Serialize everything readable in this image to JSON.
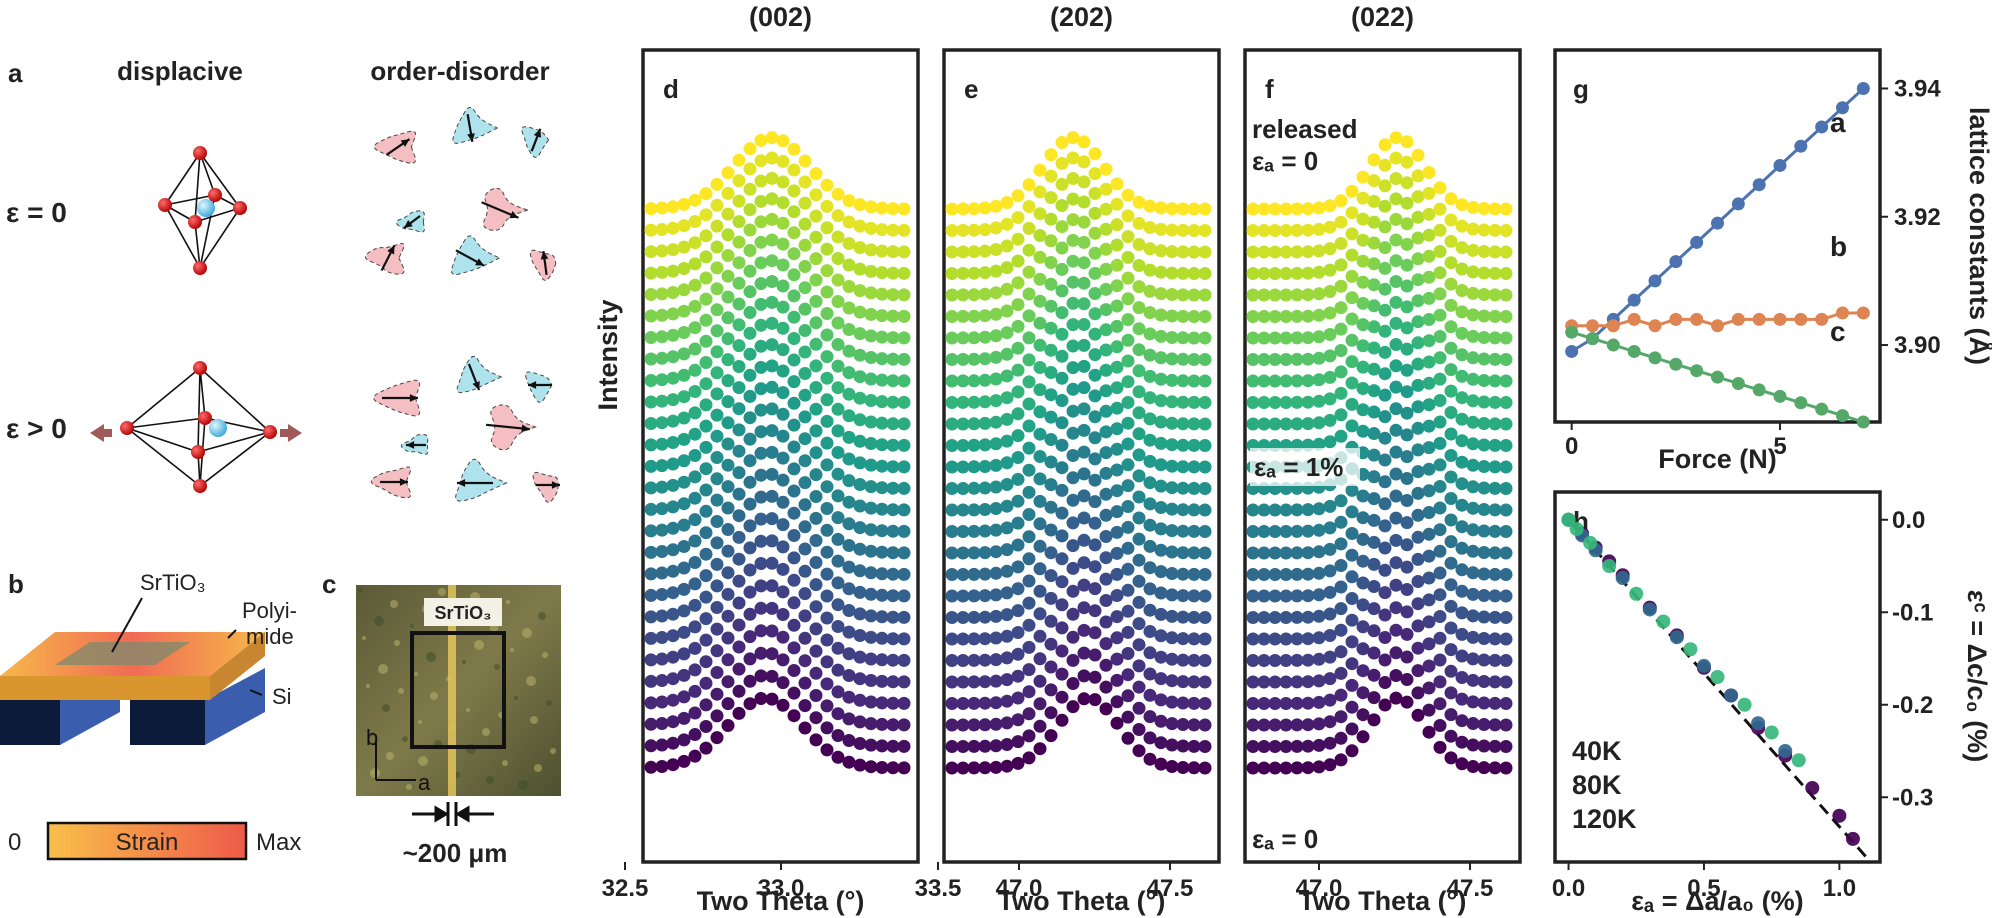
{
  "panel_a": {
    "label": "a",
    "col_displacive": "displacive",
    "col_order_disorder": "order-disorder",
    "row_eps0": "ε = 0",
    "row_epsg0": "ε > 0"
  },
  "panel_b": {
    "label": "b",
    "srtio3": "SrTiO₃",
    "polyimide_1": "Polyi-",
    "polyimide_2": "mide",
    "si": "Si",
    "strain_min": "0",
    "strain_label": "Strain",
    "strain_max": "Max"
  },
  "panel_c": {
    "label": "c",
    "srtio3": "SrTiO₃",
    "axis_b": "b",
    "axis_a": "a",
    "scale": "~200 μm"
  },
  "colors": {
    "viridis": [
      "#440154",
      "#482878",
      "#3e4989",
      "#31688e",
      "#26828e",
      "#1f9e89",
      "#35b779",
      "#6ece58",
      "#b5de2b",
      "#fde725"
    ],
    "a_series": "#4c72b0",
    "b_series": "#dd8452",
    "c_series": "#55a868",
    "k40": "#440154",
    "k80": "#31688e",
    "k120": "#35b779"
  },
  "chart_data": [
    {
      "type": "line",
      "panel": "d",
      "title": "(002)",
      "xlabel": "Two Theta (°)",
      "ylabel": "Intensity",
      "x_ticks": [
        "32.5",
        "33.0",
        "33.5"
      ],
      "xlim": [
        32.5,
        33.5
      ],
      "peak_center": 32.95,
      "peak_width": 0.12,
      "n_curves": 27,
      "series_note": "27 stacked diffraction curves, bottom (ε_a = 0) purple to top (released) yellow"
    },
    {
      "type": "line",
      "panel": "e",
      "title": "(202)",
      "xlabel": "Two Theta (°)",
      "x_ticks": [
        "47.0",
        "47.5"
      ],
      "xlim": [
        46.75,
        47.75
      ],
      "peak_center_bottom": 47.22,
      "peak_center_top": 47.18,
      "peak_width": 0.1,
      "n_curves": 27
    },
    {
      "type": "line",
      "panel": "f",
      "title": "(022)",
      "xlabel": "Two Theta (°)",
      "x_ticks": [
        "47.0",
        "47.5"
      ],
      "xlim": [
        46.75,
        47.75
      ],
      "peak_center": 47.26,
      "peak_width": 0.09,
      "n_curves": 27,
      "annotations": [
        "released",
        "εₐ = 0",
        "εₐ = 1%",
        "εₐ = 0"
      ]
    },
    {
      "type": "scatter",
      "panel": "g",
      "xlabel": "Force (N)",
      "ylabel": "lattice constants (Å)",
      "x_ticks": [
        "0",
        "5"
      ],
      "y_ticks": [
        "3.90",
        "3.92",
        "3.94"
      ],
      "xlim": [
        -0.4,
        7.4
      ],
      "ylim": [
        3.888,
        3.946
      ],
      "series": [
        {
          "name": "a",
          "x": [
            0,
            0.5,
            1,
            1.5,
            2,
            2.5,
            3,
            3.5,
            4,
            4.5,
            5,
            5.5,
            6,
            6.5,
            7
          ],
          "y": [
            3.899,
            3.901,
            3.904,
            3.907,
            3.91,
            3.913,
            3.916,
            3.919,
            3.922,
            3.925,
            3.928,
            3.931,
            3.934,
            3.937,
            3.94
          ]
        },
        {
          "name": "b",
          "x": [
            0,
            0.5,
            1,
            1.5,
            2,
            2.5,
            3,
            3.5,
            4,
            4.5,
            5,
            5.5,
            6,
            6.5,
            7
          ],
          "y": [
            3.903,
            3.903,
            3.903,
            3.904,
            3.903,
            3.904,
            3.904,
            3.903,
            3.904,
            3.904,
            3.904,
            3.904,
            3.904,
            3.905,
            3.905
          ]
        },
        {
          "name": "c",
          "x": [
            0,
            0.5,
            1,
            1.5,
            2,
            2.5,
            3,
            3.5,
            4,
            4.5,
            5,
            5.5,
            6,
            6.5,
            7
          ],
          "y": [
            3.902,
            3.901,
            3.9,
            3.899,
            3.898,
            3.897,
            3.896,
            3.895,
            3.894,
            3.893,
            3.892,
            3.891,
            3.89,
            3.889,
            3.888
          ]
        }
      ]
    },
    {
      "type": "scatter",
      "panel": "h",
      "xlabel": "εₐ = Δa/a₀ (%)",
      "ylabel": "εᶜ = Δc/c₀ (%)",
      "x_ticks": [
        "0.0",
        "0.5",
        "1.0"
      ],
      "y_ticks": [
        "0.0",
        "-0.1",
        "-0.2",
        "-0.3"
      ],
      "xlim": [
        -0.05,
        1.15
      ],
      "ylim": [
        -0.37,
        0.03
      ],
      "series": [
        {
          "name": "40K",
          "x": [
            0.0,
            0.05,
            0.1,
            0.15,
            0.2,
            0.3,
            0.4,
            0.5,
            0.6,
            0.7,
            0.8,
            0.9,
            1.0,
            1.05
          ],
          "y": [
            0.0,
            -0.015,
            -0.03,
            -0.045,
            -0.06,
            -0.095,
            -0.125,
            -0.16,
            -0.19,
            -0.225,
            -0.255,
            -0.29,
            -0.32,
            -0.345
          ]
        },
        {
          "name": "80K",
          "x": [
            0.0,
            0.05,
            0.1,
            0.2,
            0.3,
            0.4,
            0.5,
            0.6,
            0.7,
            0.8
          ],
          "y": [
            0.0,
            -0.017,
            -0.033,
            -0.063,
            -0.097,
            -0.127,
            -0.158,
            -0.19,
            -0.22,
            -0.25
          ]
        },
        {
          "name": "120K",
          "x": [
            0.0,
            0.03,
            0.08,
            0.15,
            0.25,
            0.35,
            0.45,
            0.55,
            0.65,
            0.75,
            0.85
          ],
          "y": [
            0.0,
            -0.01,
            -0.025,
            -0.05,
            -0.08,
            -0.11,
            -0.14,
            -0.17,
            -0.2,
            -0.23,
            -0.26
          ]
        }
      ]
    }
  ]
}
